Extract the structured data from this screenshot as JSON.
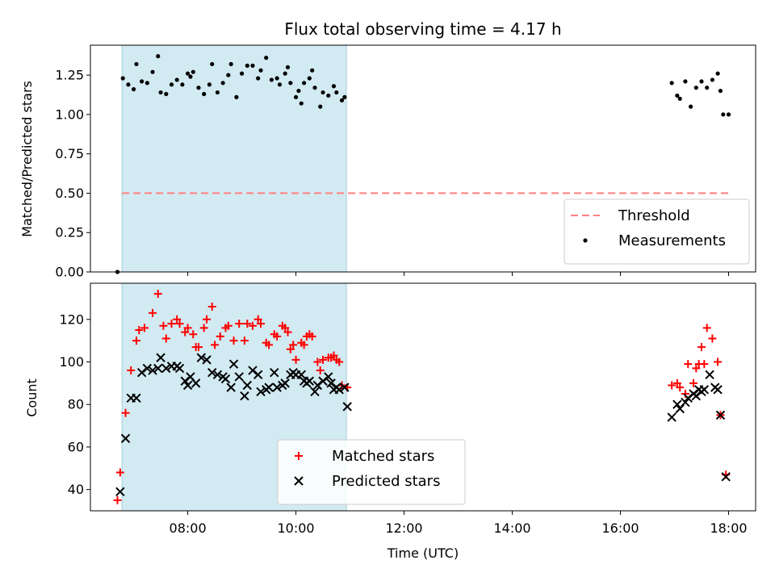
{
  "chart_data": [
    {
      "type": "scatter",
      "title": "Flux total observing time = 4.17 h",
      "xlabel": "",
      "ylabel": "Matched/Predicted stars",
      "xlim": [
        "06:12",
        "18:30"
      ],
      "ylim": [
        0,
        1.44
      ],
      "yticks": [
        0.0,
        0.25,
        0.5,
        0.75,
        1.0,
        1.25
      ],
      "ytick_labels": [
        "0.00",
        "0.25",
        "0.50",
        "0.75",
        "1.00",
        "1.25"
      ],
      "shaded_region": {
        "x": [
          "06:47",
          "10:56"
        ],
        "color": "#add8e6"
      },
      "legend_position": "lower-right",
      "threshold": {
        "name": "Threshold",
        "x": [
          "06:47",
          "18:00"
        ],
        "y": 0.5,
        "color": "#ff8080",
        "style": "dashed"
      },
      "series": [
        {
          "name": "Measurements",
          "color": "#000000",
          "marker": "dot",
          "points": [
            [
              "06:42",
              0.0
            ],
            [
              "06:48",
              1.23
            ],
            [
              "06:54",
              1.19
            ],
            [
              "07:00",
              1.16
            ],
            [
              "07:03",
              1.32
            ],
            [
              "07:09",
              1.21
            ],
            [
              "07:15",
              1.2
            ],
            [
              "07:21",
              1.27
            ],
            [
              "07:27",
              1.37
            ],
            [
              "07:30",
              1.14
            ],
            [
              "07:36",
              1.13
            ],
            [
              "07:42",
              1.19
            ],
            [
              "07:48",
              1.22
            ],
            [
              "07:54",
              1.19
            ],
            [
              "08:00",
              1.26
            ],
            [
              "08:03",
              1.24
            ],
            [
              "08:06",
              1.27
            ],
            [
              "08:12",
              1.17
            ],
            [
              "08:18",
              1.13
            ],
            [
              "08:24",
              1.19
            ],
            [
              "08:27",
              1.32
            ],
            [
              "08:33",
              1.14
            ],
            [
              "08:39",
              1.2
            ],
            [
              "08:45",
              1.25
            ],
            [
              "08:48",
              1.32
            ],
            [
              "08:54",
              1.11
            ],
            [
              "09:00",
              1.26
            ],
            [
              "09:06",
              1.31
            ],
            [
              "09:12",
              1.31
            ],
            [
              "09:18",
              1.23
            ],
            [
              "09:21",
              1.28
            ],
            [
              "09:27",
              1.36
            ],
            [
              "09:33",
              1.22
            ],
            [
              "09:39",
              1.23
            ],
            [
              "09:42",
              1.19
            ],
            [
              "09:48",
              1.26
            ],
            [
              "09:51",
              1.3
            ],
            [
              "09:54",
              1.2
            ],
            [
              "10:00",
              1.11
            ],
            [
              "10:03",
              1.15
            ],
            [
              "10:06",
              1.07
            ],
            [
              "10:09",
              1.2
            ],
            [
              "10:15",
              1.23
            ],
            [
              "10:18",
              1.28
            ],
            [
              "10:21",
              1.17
            ],
            [
              "10:27",
              1.05
            ],
            [
              "10:30",
              1.14
            ],
            [
              "10:36",
              1.12
            ],
            [
              "10:42",
              1.18
            ],
            [
              "10:45",
              1.14
            ],
            [
              "10:51",
              1.09
            ],
            [
              "10:54",
              1.11
            ],
            [
              "16:57",
              1.2
            ],
            [
              "17:03",
              1.12
            ],
            [
              "17:06",
              1.1
            ],
            [
              "17:12",
              1.21
            ],
            [
              "17:18",
              1.05
            ],
            [
              "17:24",
              1.17
            ],
            [
              "17:30",
              1.21
            ],
            [
              "17:36",
              1.17
            ],
            [
              "17:42",
              1.22
            ],
            [
              "17:48",
              1.26
            ],
            [
              "17:51",
              1.15
            ],
            [
              "17:54",
              1.0
            ],
            [
              "18:00",
              1.0
            ]
          ]
        }
      ]
    },
    {
      "type": "scatter",
      "title": "",
      "xlabel": "Time (UTC)",
      "ylabel": "Count",
      "xlim": [
        "06:12",
        "18:30"
      ],
      "ylim": [
        30,
        137
      ],
      "yticks": [
        40,
        60,
        80,
        100,
        120
      ],
      "xticks": [
        "08:00",
        "10:00",
        "12:00",
        "14:00",
        "16:00",
        "18:00"
      ],
      "shaded_region": {
        "x": [
          "06:47",
          "10:56"
        ],
        "color": "#add8e6"
      },
      "legend_position": "lower-center",
      "series": [
        {
          "name": "Matched stars",
          "color": "#ff0000",
          "marker": "plus",
          "points": [
            [
              "06:42",
              35
            ],
            [
              "06:45",
              48
            ],
            [
              "06:51",
              76
            ],
            [
              "06:57",
              96
            ],
            [
              "07:03",
              110
            ],
            [
              "07:06",
              115
            ],
            [
              "07:12",
              116
            ],
            [
              "07:21",
              123
            ],
            [
              "07:27",
              132
            ],
            [
              "07:33",
              117
            ],
            [
              "07:36",
              111
            ],
            [
              "07:42",
              118
            ],
            [
              "07:48",
              120
            ],
            [
              "07:51",
              118
            ],
            [
              "07:57",
              114
            ],
            [
              "08:00",
              116
            ],
            [
              "08:06",
              113
            ],
            [
              "08:09",
              107
            ],
            [
              "08:12",
              107
            ],
            [
              "08:18",
              116
            ],
            [
              "08:21",
              120
            ],
            [
              "08:27",
              126
            ],
            [
              "08:30",
              108
            ],
            [
              "08:36",
              112
            ],
            [
              "08:42",
              116
            ],
            [
              "08:45",
              117
            ],
            [
              "08:51",
              110
            ],
            [
              "08:57",
              118
            ],
            [
              "09:03",
              110
            ],
            [
              "09:06",
              118
            ],
            [
              "09:12",
              117
            ],
            [
              "09:18",
              120
            ],
            [
              "09:21",
              118
            ],
            [
              "09:27",
              109
            ],
            [
              "09:30",
              108
            ],
            [
              "09:36",
              113
            ],
            [
              "09:39",
              112
            ],
            [
              "09:45",
              117
            ],
            [
              "09:48",
              116
            ],
            [
              "09:51",
              114
            ],
            [
              "09:54",
              106
            ],
            [
              "09:57",
              108
            ],
            [
              "10:00",
              101
            ],
            [
              "10:06",
              109
            ],
            [
              "10:09",
              108
            ],
            [
              "10:12",
              112
            ],
            [
              "10:15",
              113
            ],
            [
              "10:18",
              112
            ],
            [
              "10:24",
              100
            ],
            [
              "10:27",
              96
            ],
            [
              "10:30",
              101
            ],
            [
              "10:36",
              102
            ],
            [
              "10:39",
              102
            ],
            [
              "10:42",
              103
            ],
            [
              "10:45",
              101
            ],
            [
              "10:48",
              100
            ],
            [
              "10:51",
              89
            ],
            [
              "10:57",
              88
            ],
            [
              "16:57",
              89
            ],
            [
              "17:03",
              90
            ],
            [
              "17:06",
              88
            ],
            [
              "17:12",
              85
            ],
            [
              "17:15",
              99
            ],
            [
              "17:21",
              90
            ],
            [
              "17:24",
              97
            ],
            [
              "17:27",
              99
            ],
            [
              "17:30",
              107
            ],
            [
              "17:33",
              99
            ],
            [
              "17:36",
              116
            ],
            [
              "17:42",
              111
            ],
            [
              "17:48",
              100
            ],
            [
              "17:51",
              75
            ],
            [
              "17:57",
              47
            ]
          ]
        },
        {
          "name": "Predicted stars",
          "color": "#000000",
          "marker": "x",
          "points": [
            [
              "06:45",
              39
            ],
            [
              "06:51",
              64
            ],
            [
              "06:57",
              83
            ],
            [
              "07:03",
              83
            ],
            [
              "07:09",
              95
            ],
            [
              "07:15",
              97
            ],
            [
              "07:21",
              96
            ],
            [
              "07:27",
              97
            ],
            [
              "07:30",
              102
            ],
            [
              "07:36",
              97
            ],
            [
              "07:42",
              98
            ],
            [
              "07:48",
              98
            ],
            [
              "07:51",
              97
            ],
            [
              "07:57",
              91
            ],
            [
              "08:00",
              89
            ],
            [
              "08:03",
              93
            ],
            [
              "08:09",
              90
            ],
            [
              "08:15",
              102
            ],
            [
              "08:21",
              101
            ],
            [
              "08:27",
              95
            ],
            [
              "08:33",
              94
            ],
            [
              "08:39",
              93
            ],
            [
              "08:42",
              92
            ],
            [
              "08:48",
              88
            ],
            [
              "08:51",
              99
            ],
            [
              "08:57",
              93
            ],
            [
              "09:03",
              84
            ],
            [
              "09:06",
              89
            ],
            [
              "09:12",
              96
            ],
            [
              "09:18",
              94
            ],
            [
              "09:21",
              86
            ],
            [
              "09:27",
              87
            ],
            [
              "09:30",
              88
            ],
            [
              "09:36",
              95
            ],
            [
              "09:39",
              88
            ],
            [
              "09:45",
              89
            ],
            [
              "09:48",
              90
            ],
            [
              "09:54",
              94
            ],
            [
              "09:57",
              95
            ],
            [
              "10:00",
              94
            ],
            [
              "10:06",
              94
            ],
            [
              "10:09",
              91
            ],
            [
              "10:12",
              90
            ],
            [
              "10:15",
              91
            ],
            [
              "10:21",
              86
            ],
            [
              "10:24",
              89
            ],
            [
              "10:30",
              91
            ],
            [
              "10:36",
              93
            ],
            [
              "10:39",
              90
            ],
            [
              "10:42",
              87
            ],
            [
              "10:45",
              88
            ],
            [
              "10:48",
              87
            ],
            [
              "10:54",
              88
            ],
            [
              "10:57",
              79
            ],
            [
              "16:57",
              74
            ],
            [
              "17:03",
              80
            ],
            [
              "17:06",
              78
            ],
            [
              "17:12",
              81
            ],
            [
              "17:15",
              83
            ],
            [
              "17:21",
              85
            ],
            [
              "17:24",
              84
            ],
            [
              "17:27",
              87
            ],
            [
              "17:30",
              86
            ],
            [
              "17:33",
              87
            ],
            [
              "17:39",
              94
            ],
            [
              "17:45",
              88
            ],
            [
              "17:48",
              87
            ],
            [
              "17:51",
              75
            ],
            [
              "17:57",
              46
            ]
          ]
        }
      ]
    }
  ]
}
